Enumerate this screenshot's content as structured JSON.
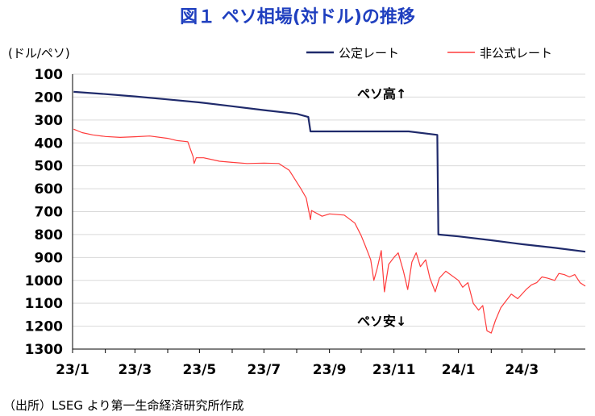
{
  "chart_data": {
    "type": "line",
    "title": "図１ ペソ相場(対ドル)の推移",
    "ylabel": "(ドル/ペソ)",
    "y_inverted": true,
    "ylim": [
      100,
      1300
    ],
    "y_ticks": [
      "100",
      "200",
      "300",
      "400",
      "500",
      "600",
      "700",
      "800",
      "900",
      "1000",
      "1100",
      "1200",
      "1300"
    ],
    "x_ticks": [
      "23/1",
      "23/3",
      "23/5",
      "23/7",
      "23/9",
      "23/11",
      "24/1",
      "24/3"
    ],
    "legend_position": "top-right",
    "grid": "horizontal",
    "annotations": [
      "ペソ高↑",
      "ペソ安↓"
    ],
    "source": "（出所）LSEG より第一生命経済研究所作成",
    "series": [
      {
        "name": "公定レート",
        "color": "#1f2a6b",
        "points": [
          [
            "2023-01-02",
            177
          ],
          [
            "2023-02-01",
            187
          ],
          [
            "2023-03-01",
            197
          ],
          [
            "2023-04-01",
            210
          ],
          [
            "2023-05-01",
            223
          ],
          [
            "2023-06-01",
            240
          ],
          [
            "2023-07-01",
            257
          ],
          [
            "2023-08-01",
            273
          ],
          [
            "2023-08-12",
            287
          ],
          [
            "2023-08-14",
            350
          ],
          [
            "2023-09-01",
            350
          ],
          [
            "2023-10-01",
            350
          ],
          [
            "2023-11-01",
            350
          ],
          [
            "2023-11-15",
            350
          ],
          [
            "2023-12-12",
            365
          ],
          [
            "2023-12-13",
            800
          ],
          [
            "2024-01-01",
            808
          ],
          [
            "2024-02-01",
            825
          ],
          [
            "2024-03-01",
            842
          ],
          [
            "2024-04-01",
            858
          ],
          [
            "2024-04-30",
            875
          ]
        ]
      },
      {
        "name": "非公式レート",
        "color": "#ff3b3b",
        "points": [
          [
            "2023-01-02",
            340
          ],
          [
            "2023-01-10",
            355
          ],
          [
            "2023-01-20",
            365
          ],
          [
            "2023-02-01",
            372
          ],
          [
            "2023-02-15",
            376
          ],
          [
            "2023-03-01",
            373
          ],
          [
            "2023-03-15",
            370
          ],
          [
            "2023-04-01",
            380
          ],
          [
            "2023-04-10",
            390
          ],
          [
            "2023-04-20",
            395
          ],
          [
            "2023-04-25",
            460
          ],
          [
            "2023-04-26",
            490
          ],
          [
            "2023-04-28",
            465
          ],
          [
            "2023-05-05",
            465
          ],
          [
            "2023-05-20",
            480
          ],
          [
            "2023-06-01",
            485
          ],
          [
            "2023-06-15",
            490
          ],
          [
            "2023-07-01",
            488
          ],
          [
            "2023-07-15",
            490
          ],
          [
            "2023-07-25",
            520
          ],
          [
            "2023-08-05",
            600
          ],
          [
            "2023-08-10",
            640
          ],
          [
            "2023-08-14",
            735
          ],
          [
            "2023-08-15",
            695
          ],
          [
            "2023-08-25",
            720
          ],
          [
            "2023-09-01",
            710
          ],
          [
            "2023-09-15",
            715
          ],
          [
            "2023-09-25",
            750
          ],
          [
            "2023-10-01",
            805
          ],
          [
            "2023-10-05",
            850
          ],
          [
            "2023-10-10",
            910
          ],
          [
            "2023-10-13",
            1000
          ],
          [
            "2023-10-16",
            950
          ],
          [
            "2023-10-20",
            870
          ],
          [
            "2023-10-23",
            1050
          ],
          [
            "2023-10-27",
            930
          ],
          [
            "2023-11-01",
            900
          ],
          [
            "2023-11-05",
            880
          ],
          [
            "2023-11-10",
            960
          ],
          [
            "2023-11-14",
            1040
          ],
          [
            "2023-11-18",
            920
          ],
          [
            "2023-11-22",
            880
          ],
          [
            "2023-11-26",
            940
          ],
          [
            "2023-12-01",
            910
          ],
          [
            "2023-12-05",
            990
          ],
          [
            "2023-12-10",
            1050
          ],
          [
            "2023-12-14",
            990
          ],
          [
            "2023-12-20",
            960
          ],
          [
            "2024-01-01",
            1000
          ],
          [
            "2024-01-05",
            1030
          ],
          [
            "2024-01-10",
            1010
          ],
          [
            "2024-01-15",
            1100
          ],
          [
            "2024-01-20",
            1130
          ],
          [
            "2024-01-24",
            1110
          ],
          [
            "2024-01-28",
            1220
          ],
          [
            "2024-02-01",
            1230
          ],
          [
            "2024-02-05",
            1175
          ],
          [
            "2024-02-10",
            1120
          ],
          [
            "2024-02-15",
            1090
          ],
          [
            "2024-02-20",
            1060
          ],
          [
            "2024-02-26",
            1080
          ],
          [
            "2024-03-05",
            1040
          ],
          [
            "2024-03-10",
            1020
          ],
          [
            "2024-03-15",
            1010
          ],
          [
            "2024-03-20",
            985
          ],
          [
            "2024-03-25",
            990
          ],
          [
            "2024-04-01",
            1000
          ],
          [
            "2024-04-05",
            970
          ],
          [
            "2024-04-10",
            975
          ],
          [
            "2024-04-15",
            985
          ],
          [
            "2024-04-20",
            975
          ],
          [
            "2024-04-25",
            1010
          ],
          [
            "2024-04-30",
            1025
          ]
        ]
      }
    ]
  }
}
